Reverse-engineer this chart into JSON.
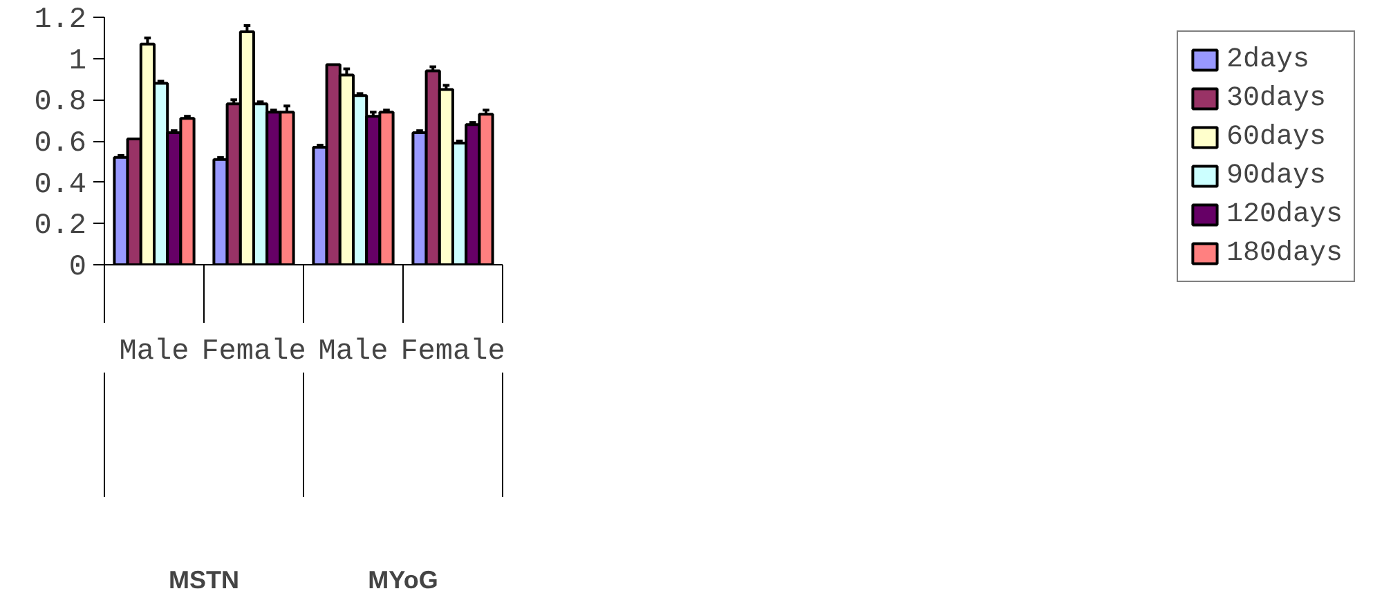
{
  "chart_data": {
    "type": "bar",
    "categories": [
      "Male",
      "Female",
      "Male",
      "Female"
    ],
    "annotations": [
      "MSTN",
      "MYoG"
    ],
    "ylim": [
      0,
      1.2
    ],
    "yticks": [
      0,
      0.2,
      0.4,
      0.6,
      0.8,
      1,
      1.2
    ],
    "grid": false,
    "legend": "right",
    "series": [
      {
        "name": "2days",
        "color": "#9999ff",
        "values": [
          0.52,
          0.51,
          0.57,
          0.64
        ],
        "errors": [
          [
            0.52,
            0.53
          ],
          [
            0.51,
            0.52
          ],
          [
            0.57,
            0.58
          ],
          [
            0.64,
            0.65
          ]
        ]
      },
      {
        "name": "30days",
        "color": "#993366",
        "values": [
          0.61,
          0.78,
          0.97,
          0.94
        ],
        "errors": [
          null,
          [
            0.78,
            0.8
          ],
          null,
          [
            0.94,
            0.96
          ]
        ]
      },
      {
        "name": "60days",
        "color": "#ffffcc",
        "values": [
          1.07,
          1.13,
          0.92,
          0.85
        ],
        "errors": [
          [
            1.07,
            1.1
          ],
          [
            1.13,
            1.16
          ],
          [
            0.92,
            0.95
          ],
          [
            0.85,
            0.87
          ]
        ]
      },
      {
        "name": "90days",
        "color": "#ccffff",
        "values": [
          0.88,
          0.78,
          0.82,
          0.59
        ],
        "errors": [
          [
            0.88,
            0.89
          ],
          [
            0.78,
            0.79
          ],
          [
            0.82,
            0.83
          ],
          [
            0.59,
            0.6
          ]
        ]
      },
      {
        "name": "120days",
        "color": "#660066",
        "values": [
          0.64,
          0.74,
          0.72,
          0.68
        ],
        "errors": [
          [
            0.64,
            0.65
          ],
          [
            0.74,
            0.75
          ],
          [
            0.72,
            0.74
          ],
          [
            0.68,
            0.69
          ]
        ]
      },
      {
        "name": "180days",
        "color": "#ff8080",
        "values": [
          0.71,
          0.74,
          0.74,
          0.73
        ],
        "errors": [
          [
            0.71,
            0.72
          ],
          [
            0.74,
            0.77
          ],
          [
            0.74,
            0.75
          ],
          [
            0.73,
            0.75
          ]
        ]
      }
    ]
  }
}
